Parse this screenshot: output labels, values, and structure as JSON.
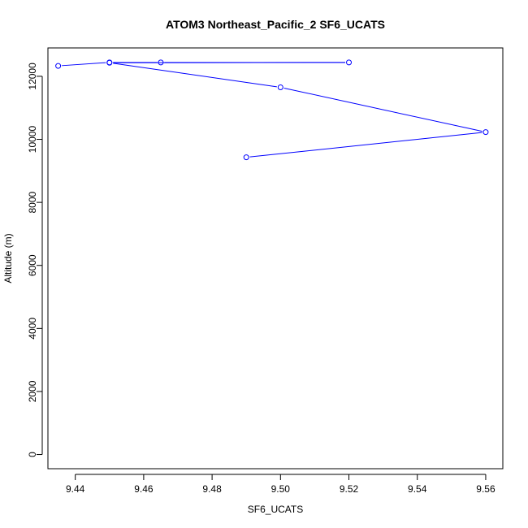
{
  "chart_data": {
    "type": "line",
    "title": "ATOM3 Northeast_Pacific_2 SF6_UCATS",
    "xlabel": "SF6_UCATS",
    "ylabel": "Altitude (m)",
    "xlim": [
      9.432,
      9.565
    ],
    "ylim": [
      -450,
      12900
    ],
    "x_ticks": [
      9.44,
      9.46,
      9.48,
      9.5,
      9.52,
      9.54,
      9.56
    ],
    "x_tick_labels": [
      "9.44",
      "9.46",
      "9.48",
      "9.50",
      "9.52",
      "9.54",
      "9.56"
    ],
    "y_ticks": [
      0,
      2000,
      4000,
      6000,
      8000,
      10000,
      12000
    ],
    "y_tick_labels": [
      "0",
      "2000",
      "4000",
      "6000",
      "8000",
      "10000",
      "12000"
    ],
    "grid": false,
    "series": [
      {
        "color": "#0000ff",
        "marker": "open-circle",
        "points": [
          {
            "x": 9.435,
            "y": 12330
          },
          {
            "x": 9.45,
            "y": 12440
          },
          {
            "x": 9.465,
            "y": 12440
          },
          {
            "x": 9.52,
            "y": 12440
          },
          {
            "x": 9.45,
            "y": 12430
          },
          {
            "x": 9.5,
            "y": 11650
          },
          {
            "x": 9.56,
            "y": 10230
          },
          {
            "x": 9.49,
            "y": 9430
          }
        ]
      }
    ]
  }
}
